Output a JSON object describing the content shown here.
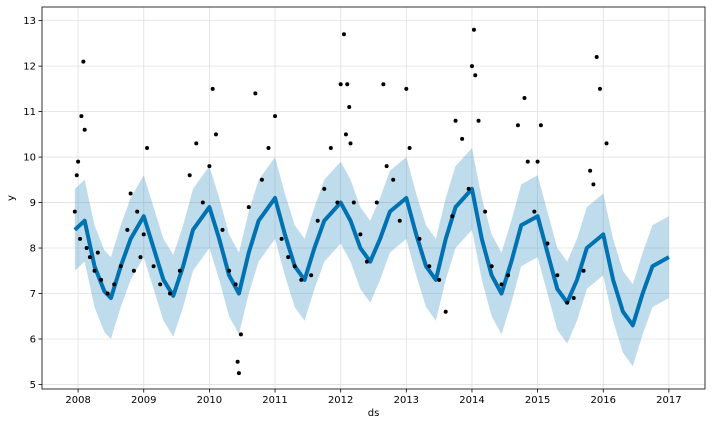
{
  "chart_data": {
    "type": "line",
    "title": "",
    "xlabel": "ds",
    "ylabel": "y",
    "xlim": [
      2007.45,
      2017.55
    ],
    "ylim": [
      4.9,
      13.3
    ],
    "grid": true,
    "legend": "none",
    "x_ticks": [
      2008,
      2009,
      2010,
      2011,
      2012,
      2013,
      2014,
      2015,
      2016,
      2017
    ],
    "x_tick_labels": [
      "2008",
      "2009",
      "2010",
      "2011",
      "2012",
      "2013",
      "2014",
      "2015",
      "2016",
      "2017"
    ],
    "y_ticks": [
      5,
      6,
      7,
      8,
      9,
      10,
      11,
      12,
      13
    ],
    "y_tick_labels": [
      "5",
      "6",
      "7",
      "8",
      "9",
      "10",
      "11",
      "12",
      "13"
    ],
    "series": [
      {
        "kind": "forecast",
        "x": [
          2007.95,
          2008.1,
          2008.25,
          2008.4,
          2008.5,
          2008.65,
          2008.8,
          2009.0,
          2009.15,
          2009.3,
          2009.45,
          2009.6,
          2009.75,
          2010.0,
          2010.15,
          2010.3,
          2010.45,
          2010.6,
          2010.75,
          2011.0,
          2011.15,
          2011.3,
          2011.45,
          2011.6,
          2011.75,
          2012.0,
          2012.15,
          2012.3,
          2012.45,
          2012.6,
          2012.75,
          2013.0,
          2013.15,
          2013.3,
          2013.45,
          2013.6,
          2013.75,
          2014.0,
          2014.15,
          2014.3,
          2014.45,
          2014.6,
          2014.75,
          2015.0,
          2015.15,
          2015.3,
          2015.45,
          2015.6,
          2015.75,
          2016.0,
          2016.15,
          2016.3,
          2016.45,
          2016.6,
          2016.75,
          2017.0
        ],
        "yhat": [
          8.4,
          8.6,
          7.6,
          7.05,
          6.9,
          7.6,
          8.2,
          8.7,
          8.0,
          7.3,
          6.95,
          7.6,
          8.4,
          8.9,
          8.2,
          7.4,
          7.0,
          7.9,
          8.6,
          9.1,
          8.3,
          7.6,
          7.3,
          8.0,
          8.6,
          9.0,
          8.6,
          8.0,
          7.7,
          8.2,
          8.8,
          9.1,
          8.3,
          7.6,
          7.3,
          8.2,
          8.9,
          9.3,
          8.2,
          7.4,
          7.0,
          7.7,
          8.5,
          8.7,
          7.9,
          7.1,
          6.8,
          7.3,
          8.0,
          8.3,
          7.3,
          6.6,
          6.3,
          7.0,
          7.6,
          7.8
        ],
        "yhat_lower": [
          7.5,
          7.7,
          6.7,
          6.15,
          6.0,
          6.7,
          7.3,
          7.8,
          7.1,
          6.4,
          6.05,
          6.7,
          7.5,
          8.0,
          7.3,
          6.5,
          6.1,
          7.0,
          7.7,
          8.2,
          7.4,
          6.7,
          6.4,
          7.1,
          7.7,
          8.1,
          7.7,
          7.1,
          6.8,
          7.3,
          7.9,
          8.2,
          7.4,
          6.7,
          6.4,
          7.3,
          8.0,
          8.4,
          7.3,
          6.5,
          6.1,
          6.8,
          7.6,
          7.8,
          7.0,
          6.2,
          5.9,
          6.4,
          7.1,
          7.4,
          6.4,
          5.7,
          5.4,
          6.1,
          6.7,
          6.9
        ],
        "yhat_upper": [
          9.3,
          9.5,
          8.5,
          7.95,
          7.8,
          8.5,
          9.1,
          9.6,
          8.9,
          8.2,
          7.85,
          8.5,
          9.3,
          9.8,
          9.1,
          8.3,
          7.9,
          8.8,
          9.5,
          10.0,
          9.2,
          8.5,
          8.2,
          8.9,
          9.5,
          9.9,
          9.5,
          8.9,
          8.6,
          9.1,
          9.7,
          10.0,
          9.2,
          8.5,
          8.2,
          9.1,
          9.8,
          10.2,
          9.1,
          8.3,
          7.9,
          8.6,
          9.4,
          9.6,
          8.8,
          8.0,
          7.7,
          8.2,
          8.9,
          9.2,
          8.2,
          7.5,
          7.2,
          7.9,
          8.5,
          8.7
        ]
      },
      {
        "kind": "observed",
        "x": [
          2007.95,
          2007.98,
          2008.0,
          2008.03,
          2008.05,
          2008.08,
          2008.1,
          2008.13,
          2008.18,
          2008.25,
          2008.3,
          2008.35,
          2008.45,
          2008.55,
          2008.65,
          2008.75,
          2008.8,
          2008.85,
          2008.9,
          2008.95,
          2009.0,
          2009.05,
          2009.15,
          2009.25,
          2009.4,
          2009.55,
          2009.7,
          2009.8,
          2009.9,
          2010.0,
          2010.05,
          2010.1,
          2010.2,
          2010.3,
          2010.4,
          2010.43,
          2010.45,
          2010.48,
          2010.6,
          2010.7,
          2010.8,
          2010.9,
          2011.0,
          2011.1,
          2011.2,
          2011.3,
          2011.4,
          2011.55,
          2011.65,
          2011.75,
          2011.85,
          2011.95,
          2012.0,
          2012.05,
          2012.08,
          2012.1,
          2012.13,
          2012.15,
          2012.2,
          2012.3,
          2012.4,
          2012.55,
          2012.65,
          2012.7,
          2012.8,
          2012.9,
          2013.0,
          2013.05,
          2013.2,
          2013.35,
          2013.5,
          2013.6,
          2013.7,
          2013.75,
          2013.85,
          2013.95,
          2014.0,
          2014.03,
          2014.05,
          2014.1,
          2014.2,
          2014.3,
          2014.45,
          2014.55,
          2014.7,
          2014.8,
          2014.85,
          2014.95,
          2015.0,
          2015.05,
          2015.15,
          2015.3,
          2015.45,
          2015.55,
          2015.7,
          2015.8,
          2015.85,
          2015.9,
          2015.95,
          2016.05
        ],
        "y": [
          8.8,
          9.6,
          9.9,
          8.2,
          10.9,
          12.1,
          10.6,
          8.0,
          7.8,
          7.5,
          7.9,
          7.3,
          7.0,
          7.2,
          7.6,
          8.4,
          9.2,
          7.5,
          8.8,
          7.8,
          8.3,
          10.2,
          7.6,
          7.2,
          7.0,
          7.5,
          9.6,
          10.3,
          9.0,
          9.8,
          11.5,
          10.5,
          8.4,
          7.5,
          7.2,
          5.5,
          5.25,
          6.1,
          8.9,
          11.4,
          9.5,
          10.2,
          10.9,
          8.2,
          7.8,
          7.6,
          7.3,
          7.4,
          8.6,
          9.3,
          10.2,
          9.0,
          11.6,
          12.7,
          10.5,
          11.6,
          11.1,
          10.3,
          9.0,
          8.3,
          7.7,
          9.0,
          11.6,
          9.8,
          9.5,
          8.6,
          11.5,
          10.2,
          8.2,
          7.6,
          7.3,
          6.6,
          8.7,
          10.8,
          10.4,
          9.3,
          12.0,
          12.8,
          11.8,
          10.8,
          8.8,
          7.6,
          7.2,
          7.4,
          10.7,
          11.3,
          9.9,
          8.8,
          9.9,
          10.7,
          8.1,
          7.4,
          6.8,
          6.9,
          7.5,
          9.7,
          9.4,
          12.2,
          11.5,
          10.3
        ]
      }
    ]
  }
}
